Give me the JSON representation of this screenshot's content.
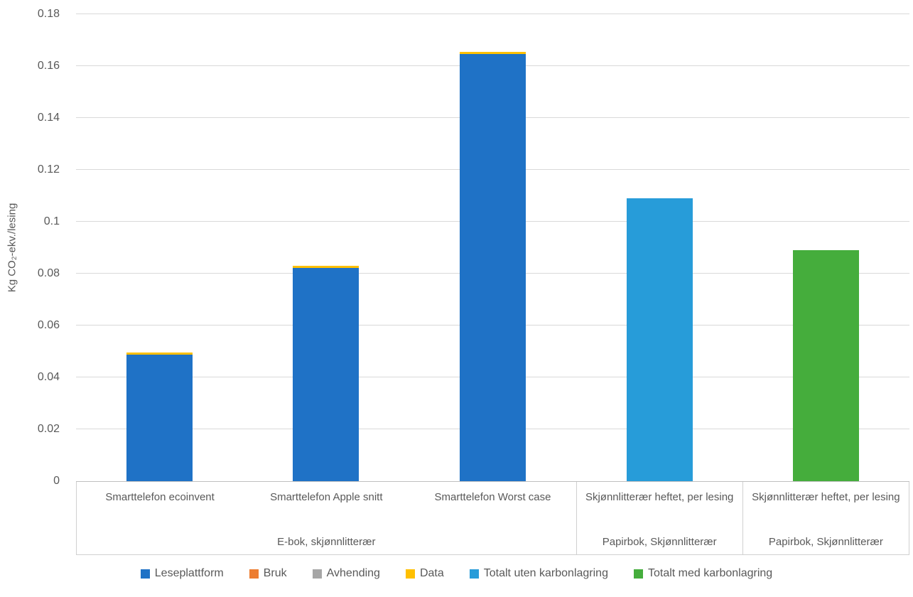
{
  "chart_data": {
    "type": "bar",
    "stacked": true,
    "title": "",
    "xlabel": "",
    "ylabel": "Kg CO₂-ekv./lesing",
    "ylim": [
      0,
      0.18
    ],
    "ytick_values": [
      0,
      0.02,
      0.04,
      0.06,
      0.08,
      0.1,
      0.12,
      0.14,
      0.16,
      0.18
    ],
    "ytick_labels": [
      "0",
      "0.02",
      "0.04",
      "0.06",
      "0.08",
      "0.1",
      "0.12",
      "0.14",
      "0.16",
      "0.18"
    ],
    "grid": true,
    "legend_position": "bottom",
    "categories": [
      "Smarttelefon ecoinvent",
      "Smarttelefon Apple snitt",
      "Smarttelefon Worst case",
      "Skjønnlitterær heftet, per lesing",
      "Skjønnlitterær heftet, per lesing"
    ],
    "groups": [
      {
        "label": "E-bok, skjønnlitterær",
        "categories": [
          "Smarttelefon ecoinvent",
          "Smarttelefon Apple snitt",
          "Smarttelefon Worst case"
        ]
      },
      {
        "label": "Papirbok, Skjønnlitterær",
        "categories": [
          "Skjønnlitterær heftet, per lesing"
        ]
      },
      {
        "label": "Papirbok, Skjønnlitterær",
        "categories": [
          "Skjønnlitterær heftet, per lesing"
        ]
      }
    ],
    "series": [
      {
        "name": "Leseplattform",
        "color": "#1F72C6",
        "values": [
          0.0487,
          0.0822,
          0.1647,
          0,
          0
        ]
      },
      {
        "name": "Bruk",
        "color": "#ED7D31",
        "values": [
          0,
          0,
          0,
          0,
          0
        ]
      },
      {
        "name": "Avhending",
        "color": "#A6A6A6",
        "values": [
          0,
          0,
          0,
          0,
          0
        ]
      },
      {
        "name": "Data",
        "color": "#FFC000",
        "values": [
          0.0008,
          0.0008,
          0.0008,
          0,
          0
        ]
      },
      {
        "name": "Totalt uten karbonlagring",
        "color": "#279CD9",
        "values": [
          0,
          0,
          0,
          0.109,
          0
        ]
      },
      {
        "name": "Totalt med karbonlagring",
        "color": "#45AD3C",
        "values": [
          0,
          0,
          0,
          0,
          0.089
        ]
      }
    ],
    "bar_totals": [
      0.0495,
      0.083,
      0.1655,
      0.109,
      0.089
    ]
  },
  "colors": {
    "text": "#595959",
    "gridline": "#D9D9D9",
    "axis_line": "#BFBFBF",
    "band_border": "#D0D0D0"
  }
}
